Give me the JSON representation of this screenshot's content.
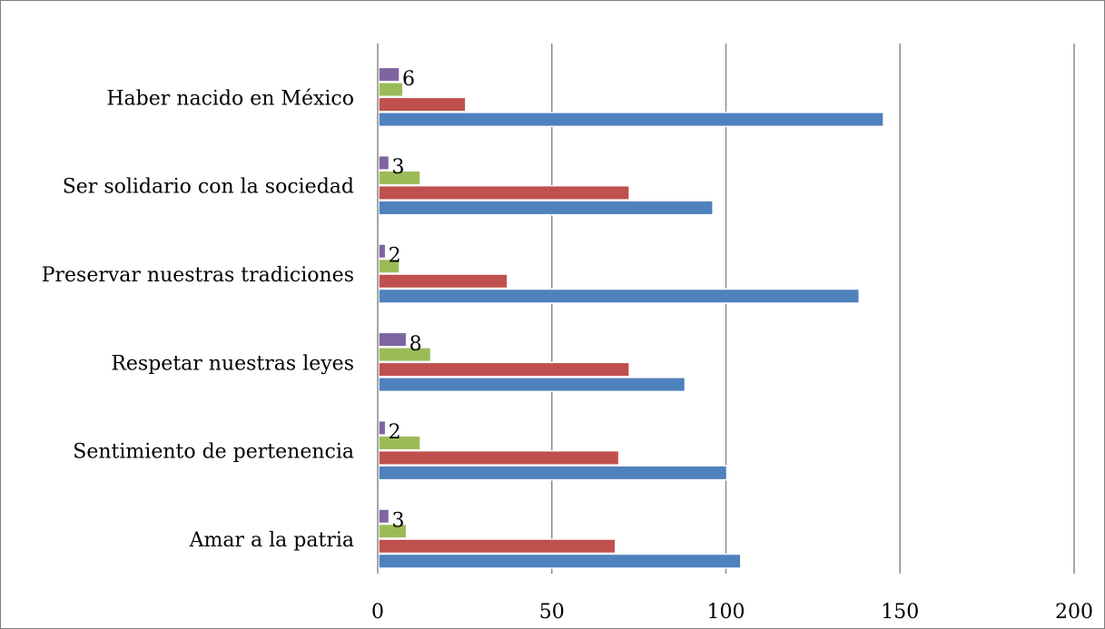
{
  "chart_data": {
    "type": "bar",
    "orientation": "horizontal",
    "categories": [
      "Amar a la patria ",
      "Sentimiento de pertenencia",
      "Respetar nuestras leyes",
      "Preservar nuestras tradiciones ",
      "Ser solidario con la sociedad",
      "Haber nacido en México"
    ],
    "series": [
      {
        "values": [
          104,
          100,
          88,
          138,
          96,
          145
        ],
        "color": "#4f81bd"
      },
      {
        "values": [
          68,
          69,
          72,
          37,
          72,
          25
        ],
        "color": "#c0504d"
      },
      {
        "values": [
          8,
          12,
          15,
          6,
          12,
          7
        ],
        "color": "#9bbb59"
      },
      {
        "values": [
          3,
          2,
          8,
          2,
          3,
          6
        ],
        "color": "#8064a2",
        "data_labels": [
          "3",
          "2",
          "8",
          "2",
          "3",
          "6"
        ]
      }
    ],
    "xlim": [
      0,
      200
    ],
    "xticks": [
      "0",
      "50",
      "100",
      "150",
      "200"
    ],
    "title": "",
    "xlabel": "",
    "ylabel": "",
    "grid": true,
    "legend": "none"
  }
}
